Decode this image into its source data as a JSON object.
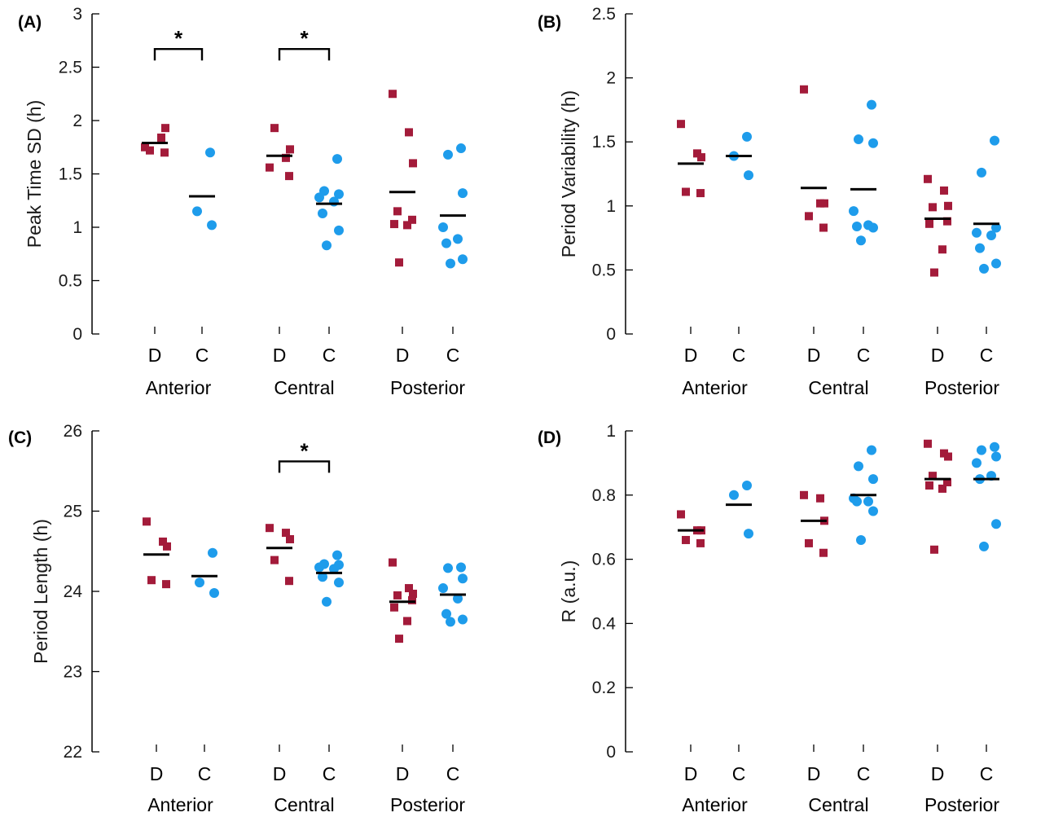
{
  "chart_data": [
    {
      "type": "scatter",
      "panel_label": "(A)",
      "ylabel": "Peak Time SD (h)",
      "ylim": [
        0,
        3
      ],
      "yticks": [
        0,
        0.5,
        1,
        1.5,
        2,
        2.5,
        3
      ],
      "ytick_labels": [
        "0",
        "0.5",
        "1",
        "1.5",
        "2",
        "2.5",
        "3"
      ],
      "groups": [
        "Anterior",
        "Central",
        "Posterior"
      ],
      "conditions": [
        "D",
        "C"
      ],
      "colors": {
        "D": "#a31b3a",
        "C": "#1e9ceb"
      },
      "markers": {
        "D": "square",
        "C": "circle"
      },
      "series": [
        {
          "group": "Anterior",
          "condition": "D",
          "values": [
            1.75,
            1.84,
            1.93,
            1.72,
            1.7
          ],
          "mean": 1.79
        },
        {
          "group": "Anterior",
          "condition": "C",
          "values": [
            1.7,
            1.15,
            1.02
          ],
          "mean": 1.29
        },
        {
          "group": "Central",
          "condition": "D",
          "values": [
            1.56,
            1.65,
            1.73,
            1.93,
            1.48
          ],
          "mean": 1.67
        },
        {
          "group": "Central",
          "condition": "C",
          "values": [
            1.64,
            1.34,
            1.31,
            1.28,
            1.24,
            1.13,
            0.97,
            0.83
          ],
          "mean": 1.22
        },
        {
          "group": "Posterior",
          "condition": "D",
          "values": [
            2.25,
            1.89,
            1.6,
            1.15,
            1.07,
            1.03,
            1.02,
            0.67
          ],
          "mean": 1.33
        },
        {
          "group": "Posterior",
          "condition": "C",
          "values": [
            1.74,
            1.68,
            1.32,
            1.0,
            0.89,
            0.85,
            0.7,
            0.66
          ],
          "mean": 1.11
        }
      ],
      "significance": [
        {
          "group": "Anterior",
          "y": 2.67,
          "label": "*"
        },
        {
          "group": "Central",
          "y": 2.67,
          "label": "*"
        }
      ]
    },
    {
      "type": "scatter",
      "panel_label": "(B)",
      "ylabel": "Period Variability (h)",
      "ylim": [
        0,
        2.5
      ],
      "yticks": [
        0,
        0.5,
        1,
        1.5,
        2,
        2.5
      ],
      "ytick_labels": [
        "0",
        "0.5",
        "1",
        "1.5",
        "2",
        "2.5"
      ],
      "groups": [
        "Anterior",
        "Central",
        "Posterior"
      ],
      "conditions": [
        "D",
        "C"
      ],
      "colors": {
        "D": "#a31b3a",
        "C": "#1e9ceb"
      },
      "markers": {
        "D": "square",
        "C": "circle"
      },
      "series": [
        {
          "group": "Anterior",
          "condition": "D",
          "values": [
            1.64,
            1.41,
            1.38,
            1.11,
            1.1
          ],
          "mean": 1.33
        },
        {
          "group": "Anterior",
          "condition": "C",
          "values": [
            1.54,
            1.39,
            1.24
          ],
          "mean": 1.39
        },
        {
          "group": "Central",
          "condition": "D",
          "values": [
            1.91,
            1.02,
            1.02,
            0.92,
            0.83
          ],
          "mean": 1.14
        },
        {
          "group": "Central",
          "condition": "C",
          "values": [
            1.79,
            1.52,
            1.49,
            0.96,
            0.85,
            0.84,
            0.83,
            0.73
          ],
          "mean": 1.13
        },
        {
          "group": "Posterior",
          "condition": "D",
          "values": [
            1.21,
            1.12,
            1.0,
            0.99,
            0.88,
            0.86,
            0.66,
            0.48
          ],
          "mean": 0.9
        },
        {
          "group": "Posterior",
          "condition": "C",
          "values": [
            1.51,
            1.26,
            0.83,
            0.79,
            0.77,
            0.67,
            0.55,
            0.51
          ],
          "mean": 0.86
        }
      ],
      "significance": []
    },
    {
      "type": "scatter",
      "panel_label": "(C)",
      "ylabel": "Period Length (h)",
      "ylim": [
        22,
        26
      ],
      "yticks": [
        22,
        23,
        24,
        25,
        26
      ],
      "ytick_labels": [
        "22",
        "23",
        "24",
        "25",
        "26"
      ],
      "groups": [
        "Anterior",
        "Central",
        "Posterior"
      ],
      "conditions": [
        "D",
        "C"
      ],
      "colors": {
        "D": "#a31b3a",
        "C": "#1e9ceb"
      },
      "markers": {
        "D": "square",
        "C": "circle"
      },
      "series": [
        {
          "group": "Anterior",
          "condition": "D",
          "values": [
            24.87,
            24.62,
            24.56,
            24.14,
            24.09
          ],
          "mean": 24.46
        },
        {
          "group": "Anterior",
          "condition": "C",
          "values": [
            24.48,
            24.11,
            23.98
          ],
          "mean": 24.19
        },
        {
          "group": "Central",
          "condition": "D",
          "values": [
            24.79,
            24.73,
            24.65,
            24.39,
            24.13
          ],
          "mean": 24.54
        },
        {
          "group": "Central",
          "condition": "C",
          "values": [
            24.45,
            24.34,
            24.33,
            24.3,
            24.28,
            24.18,
            24.11,
            23.87
          ],
          "mean": 24.23
        },
        {
          "group": "Posterior",
          "condition": "D",
          "values": [
            24.36,
            24.04,
            23.97,
            23.95,
            23.89,
            23.8,
            23.63,
            23.41
          ],
          "mean": 23.87
        },
        {
          "group": "Posterior",
          "condition": "C",
          "values": [
            24.3,
            24.29,
            24.16,
            24.04,
            23.91,
            23.72,
            23.65,
            23.62
          ],
          "mean": 23.96
        }
      ],
      "significance": [
        {
          "group": "Central",
          "y": 25.62,
          "label": "*"
        }
      ]
    },
    {
      "type": "scatter",
      "panel_label": "(D)",
      "ylabel": "R (a.u.)",
      "ylim": [
        0,
        1
      ],
      "yticks": [
        0,
        0.2,
        0.4,
        0.6,
        0.8,
        1
      ],
      "ytick_labels": [
        "0",
        "0.2",
        "0.4",
        "0.6",
        "0.8",
        "1"
      ],
      "groups": [
        "Anterior",
        "Central",
        "Posterior"
      ],
      "conditions": [
        "D",
        "C"
      ],
      "colors": {
        "D": "#a31b3a",
        "C": "#1e9ceb"
      },
      "markers": {
        "D": "square",
        "C": "circle"
      },
      "series": [
        {
          "group": "Anterior",
          "condition": "D",
          "values": [
            0.74,
            0.69,
            0.69,
            0.66,
            0.65
          ],
          "mean": 0.69
        },
        {
          "group": "Anterior",
          "condition": "C",
          "values": [
            0.83,
            0.8,
            0.68
          ],
          "mean": 0.77
        },
        {
          "group": "Central",
          "condition": "D",
          "values": [
            0.8,
            0.79,
            0.72,
            0.65,
            0.62
          ],
          "mean": 0.72
        },
        {
          "group": "Central",
          "condition": "C",
          "values": [
            0.94,
            0.89,
            0.85,
            0.79,
            0.78,
            0.78,
            0.75,
            0.66
          ],
          "mean": 0.8
        },
        {
          "group": "Posterior",
          "condition": "D",
          "values": [
            0.96,
            0.93,
            0.92,
            0.86,
            0.84,
            0.83,
            0.82,
            0.63
          ],
          "mean": 0.85
        },
        {
          "group": "Posterior",
          "condition": "C",
          "values": [
            0.95,
            0.94,
            0.92,
            0.9,
            0.86,
            0.85,
            0.71,
            0.64
          ],
          "mean": 0.85
        }
      ],
      "significance": []
    }
  ]
}
